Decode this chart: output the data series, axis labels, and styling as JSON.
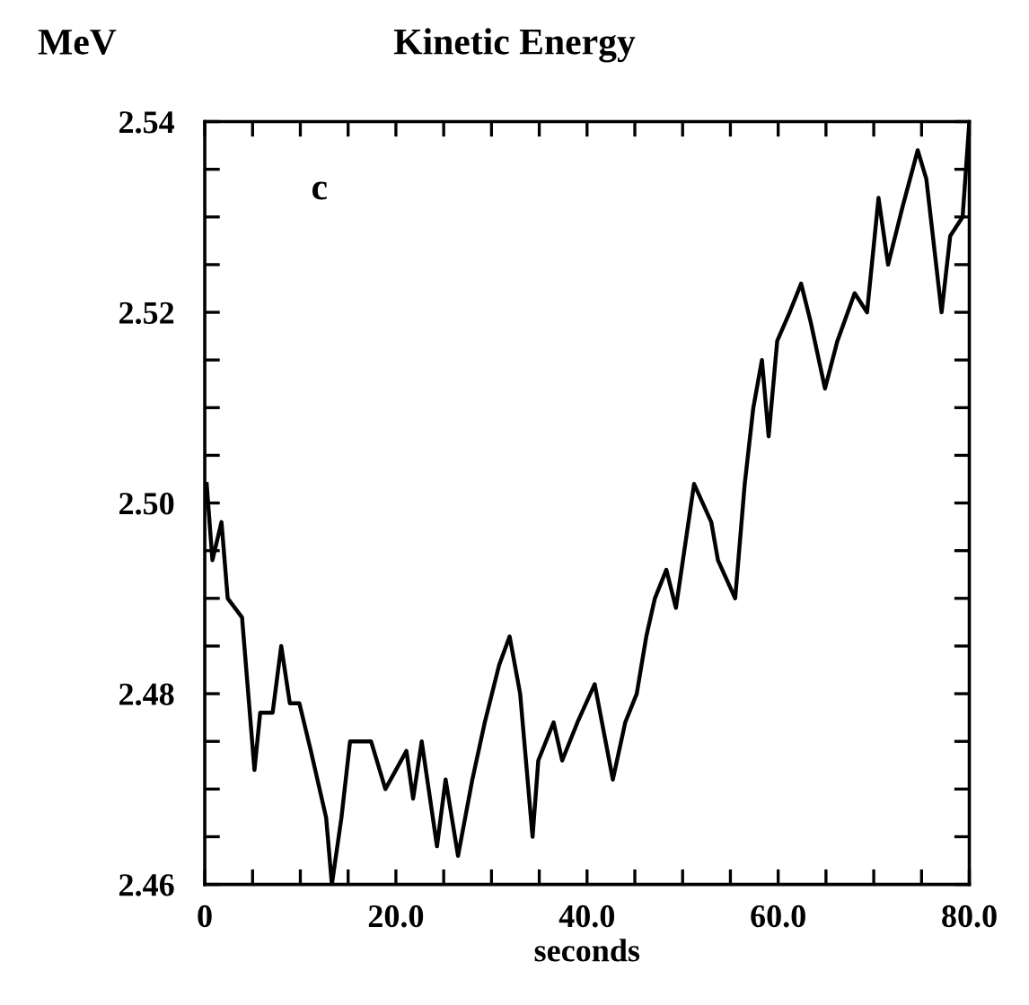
{
  "chart_data": {
    "type": "line",
    "title": "Kinetic Energy",
    "xlabel": "seconds",
    "ylabel": "MeV",
    "annotations": [
      "c"
    ],
    "x": [
      0.2,
      0.8,
      1.75,
      2.4,
      3.9,
      5.2,
      5.8,
      7.1,
      8.0,
      8.9,
      9.9,
      11.1,
      12.7,
      13.3,
      14.3,
      15.2,
      17.4,
      18.9,
      21.1,
      21.8,
      22.7,
      24.3,
      25.2,
      26.5,
      28.0,
      29.3,
      30.8,
      31.9,
      33.0,
      34.3,
      34.9,
      36.5,
      37.4,
      39.0,
      40.8,
      42.7,
      44.0,
      45.2,
      46.2,
      47.1,
      48.3,
      49.3,
      51.2,
      53.0,
      53.7,
      55.5,
      56.5,
      57.4,
      58.3,
      59.0,
      59.9,
      61.2,
      62.4,
      63.4,
      64.9,
      66.2,
      68.0,
      69.3,
      70.5,
      71.5,
      73.0,
      74.6,
      75.5,
      77.1,
      78.0,
      79.3,
      80.0
    ],
    "series": [
      {
        "color": "#000000",
        "values": [
          2.502,
          2.494,
          2.498,
          2.49,
          2.488,
          2.472,
          2.478,
          2.478,
          2.485,
          2.479,
          2.479,
          2.474,
          2.467,
          2.46,
          2.467,
          2.475,
          2.475,
          2.47,
          2.474,
          2.469,
          2.475,
          2.464,
          2.471,
          2.463,
          2.471,
          2.477,
          2.483,
          2.486,
          2.48,
          2.465,
          2.473,
          2.477,
          2.473,
          2.477,
          2.481,
          2.471,
          2.477,
          2.48,
          2.486,
          2.49,
          2.493,
          2.489,
          2.502,
          2.498,
          2.494,
          2.49,
          2.502,
          2.51,
          2.515,
          2.507,
          2.517,
          2.52,
          2.523,
          2.519,
          2.512,
          2.517,
          2.522,
          2.52,
          2.532,
          2.525,
          2.531,
          2.537,
          2.534,
          2.52,
          2.528,
          2.53,
          2.54
        ]
      }
    ],
    "xlim": [
      0,
      80
    ],
    "ylim": [
      2.46,
      2.54
    ],
    "xticks": [
      {
        "value": 0,
        "label": "0"
      },
      {
        "value": 5,
        "label": null
      },
      {
        "value": 10,
        "label": null
      },
      {
        "value": 15,
        "label": null
      },
      {
        "value": 20,
        "label": "20.0"
      },
      {
        "value": 25,
        "label": null
      },
      {
        "value": 30,
        "label": null
      },
      {
        "value": 35,
        "label": null
      },
      {
        "value": 40,
        "label": "40.0"
      },
      {
        "value": 45,
        "label": null
      },
      {
        "value": 50,
        "label": null
      },
      {
        "value": 55,
        "label": null
      },
      {
        "value": 60,
        "label": "60.0"
      },
      {
        "value": 65,
        "label": null
      },
      {
        "value": 70,
        "label": null
      },
      {
        "value": 75,
        "label": null
      },
      {
        "value": 80,
        "label": "80.0"
      }
    ],
    "yticks": [
      {
        "value": 2.46,
        "label": "2.46"
      },
      {
        "value": 2.465,
        "label": null
      },
      {
        "value": 2.47,
        "label": null
      },
      {
        "value": 2.475,
        "label": null
      },
      {
        "value": 2.48,
        "label": "2.48"
      },
      {
        "value": 2.485,
        "label": null
      },
      {
        "value": 2.49,
        "label": null
      },
      {
        "value": 2.495,
        "label": null
      },
      {
        "value": 2.5,
        "label": "2.50"
      },
      {
        "value": 2.505,
        "label": null
      },
      {
        "value": 2.51,
        "label": null
      },
      {
        "value": 2.515,
        "label": null
      },
      {
        "value": 2.52,
        "label": "2.52"
      },
      {
        "value": 2.525,
        "label": null
      },
      {
        "value": 2.53,
        "label": null
      },
      {
        "value": 2.535,
        "label": null
      },
      {
        "value": 2.54,
        "label": "2.54"
      }
    ],
    "grid": false,
    "legend": false
  }
}
